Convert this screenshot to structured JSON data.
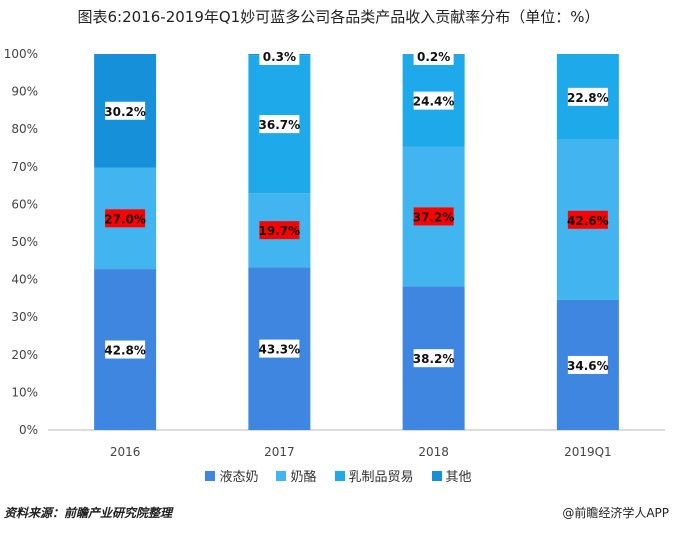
{
  "title": "图表6:2016-2019年Q1妙可蓝多公司各品类产品收入贡献率分布（单位：%）",
  "footer": {
    "source": "资料来源：前瞻产业研究院整理",
    "brand": "@前瞻经济学人APP"
  },
  "chart_data": {
    "type": "bar",
    "stacked": true,
    "categories": [
      "2016",
      "2017",
      "2018",
      "2019Q1"
    ],
    "ylim": [
      0,
      100
    ],
    "yticks": [
      "0%",
      "10%",
      "20%",
      "30%",
      "40%",
      "50%",
      "60%",
      "70%",
      "80%",
      "90%",
      "100%"
    ],
    "legend_position": "bottom",
    "series": [
      {
        "name": "液态奶",
        "color": "#3f86e0",
        "values": [
          42.8,
          43.3,
          38.2,
          34.6
        ],
        "labels": [
          "42.8%",
          "43.3%",
          "38.2%",
          "34.6%"
        ],
        "label_bg": "#ffffff"
      },
      {
        "name": "奶酪",
        "color": "#42b4ef",
        "values": [
          27.0,
          19.7,
          37.2,
          42.6
        ],
        "labels": [
          "27.0%",
          "19.7%",
          "37.2%",
          "42.6%"
        ],
        "label_bg": "#ff0000"
      },
      {
        "name": "乳制品贸易",
        "color": "#1eaaea",
        "values": [
          0,
          36.7,
          24.4,
          22.8
        ],
        "labels": [
          "",
          "36.7%",
          "24.4%",
          "22.8%"
        ],
        "label_bg": "#ffffff"
      },
      {
        "name": "其他",
        "color": "#1690d8",
        "values": [
          30.2,
          0.3,
          0.2,
          0
        ],
        "labels": [
          "30.2%",
          "0.3%",
          "0.2%",
          ""
        ],
        "label_bg": "#ffffff"
      }
    ]
  }
}
